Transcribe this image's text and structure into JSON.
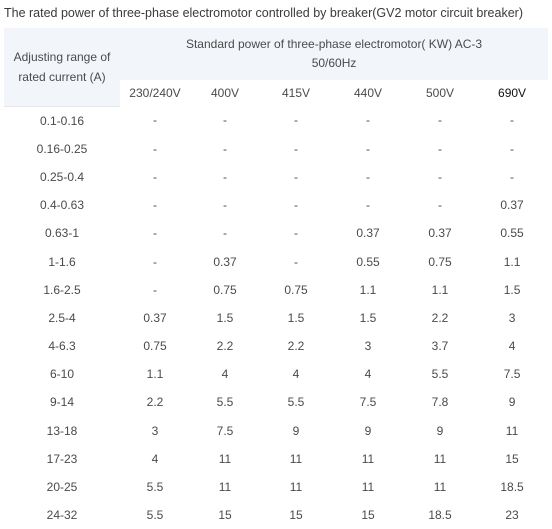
{
  "caption": "The rated power of three-phase electromotor controlled by breaker(GV2 motor circuit breaker)",
  "header": {
    "range_line1": "Adjusting range of",
    "range_line2": "rated current (A)",
    "standard_line1": "Standard power of three-phase electromotor( KW) AC-3",
    "standard_line2": "50/60Hz",
    "voltages": [
      "230/240V",
      "400V",
      "415V",
      "440V",
      "500V",
      "690V"
    ]
  },
  "rows": [
    {
      "range": "0.1-0.16",
      "values": [
        "-",
        "-",
        "-",
        "-",
        "-",
        "-"
      ]
    },
    {
      "range": "0.16-0.25",
      "values": [
        "-",
        "-",
        "-",
        "-",
        "-",
        "-"
      ]
    },
    {
      "range": "0.25-0.4",
      "values": [
        "-",
        "-",
        "-",
        "-",
        "-",
        "-"
      ]
    },
    {
      "range": "0.4-0.63",
      "values": [
        "-",
        "-",
        "-",
        "-",
        "-",
        "0.37"
      ]
    },
    {
      "range": "0.63-1",
      "values": [
        "-",
        "-",
        "-",
        "0.37",
        "0.37",
        "0.55"
      ]
    },
    {
      "range": "1-1.6",
      "values": [
        "-",
        "0.37",
        "-",
        "0.55",
        "0.75",
        "1.1"
      ]
    },
    {
      "range": "1.6-2.5",
      "values": [
        "-",
        "0.75",
        "0.75",
        "1.1",
        "1.1",
        "1.5"
      ]
    },
    {
      "range": "2.5-4",
      "values": [
        "0.37",
        "1.5",
        "1.5",
        "1.5",
        "2.2",
        "3"
      ]
    },
    {
      "range": "4-6.3",
      "values": [
        "0.75",
        "2.2",
        "2.2",
        "3",
        "3.7",
        "4"
      ]
    },
    {
      "range": "6-10",
      "values": [
        "1.1",
        "4",
        "4",
        "4",
        "5.5",
        "7.5"
      ]
    },
    {
      "range": "9-14",
      "values": [
        "2.2",
        "5.5",
        "5.5",
        "7.5",
        "7.8",
        "9"
      ]
    },
    {
      "range": "13-18",
      "values": [
        "3",
        "7.5",
        "9",
        "9",
        "9",
        "11"
      ]
    },
    {
      "range": "17-23",
      "values": [
        "4",
        "11",
        "11",
        "11",
        "11",
        "15"
      ]
    },
    {
      "range": "20-25",
      "values": [
        "5.5",
        "11",
        "11",
        "11",
        "11",
        "18.5"
      ]
    },
    {
      "range": "24-32",
      "values": [
        "5.5",
        "15",
        "15",
        "15",
        "18.5",
        "23"
      ]
    }
  ]
}
